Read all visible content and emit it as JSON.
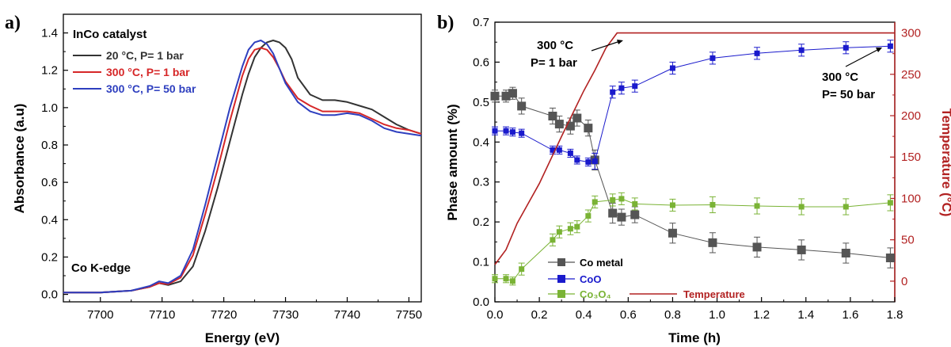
{
  "chart_data": [
    {
      "panel_label": "a)",
      "type": "line",
      "xlabel": "Energy (eV)",
      "ylabel": "Absorbance (a.u)",
      "xlim": [
        7694,
        7752
      ],
      "ylim": [
        -0.04,
        1.5
      ],
      "xticks": [
        "7700",
        "7710",
        "7720",
        "7730",
        "7740",
        "7750"
      ],
      "yticks": [
        "0.0",
        "0.2",
        "0.4",
        "0.6",
        "0.8",
        "1.0",
        "1.2",
        "1.4"
      ],
      "legend_title": "InCo catalyst",
      "annotation": "Co K-edge",
      "legend_position": "top-left",
      "series": [
        {
          "name": "20 °C, P= 1 bar",
          "color": "#333333",
          "x": [
            7694,
            7700,
            7705,
            7708,
            7709.5,
            7711,
            7713,
            7715,
            7717,
            7719,
            7721,
            7723,
            7724,
            7725,
            7726,
            7727,
            7728,
            7729,
            7730,
            7731,
            7732,
            7734,
            7736,
            7738,
            7740,
            7742,
            7744,
            7746,
            7748,
            7750,
            7752
          ],
          "y": [
            0.01,
            0.01,
            0.02,
            0.04,
            0.06,
            0.05,
            0.07,
            0.15,
            0.34,
            0.57,
            0.82,
            1.07,
            1.18,
            1.27,
            1.32,
            1.35,
            1.36,
            1.35,
            1.32,
            1.26,
            1.16,
            1.07,
            1.04,
            1.04,
            1.03,
            1.01,
            0.99,
            0.95,
            0.91,
            0.88,
            0.86
          ]
        },
        {
          "name": "300 °C, P= 1 bar",
          "color": "#d62728",
          "x": [
            7694,
            7700,
            7705,
            7708,
            7709.5,
            7711,
            7713,
            7715,
            7717,
            7719,
            7721,
            7723,
            7724,
            7725,
            7726,
            7727,
            7728,
            7729,
            7730,
            7732,
            7734,
            7736,
            7738,
            7740,
            7742,
            7744,
            7746,
            7748,
            7750,
            7752
          ],
          "y": [
            0.01,
            0.01,
            0.02,
            0.04,
            0.06,
            0.055,
            0.09,
            0.21,
            0.43,
            0.67,
            0.93,
            1.17,
            1.26,
            1.31,
            1.32,
            1.31,
            1.27,
            1.21,
            1.14,
            1.05,
            1.01,
            0.98,
            0.98,
            0.98,
            0.97,
            0.94,
            0.91,
            0.89,
            0.88,
            0.86
          ]
        },
        {
          "name": "300 °C, P= 50 bar",
          "color": "#2e3fbf",
          "x": [
            7694,
            7700,
            7705,
            7708,
            7709.5,
            7711,
            7713,
            7715,
            7717,
            7719,
            7721,
            7723,
            7724,
            7725,
            7726,
            7727,
            7728,
            7729,
            7730,
            7732,
            7734,
            7736,
            7738,
            7740,
            7742,
            7744,
            7746,
            7748,
            7750,
            7752
          ],
          "y": [
            0.01,
            0.01,
            0.02,
            0.045,
            0.07,
            0.06,
            0.1,
            0.24,
            0.48,
            0.74,
            1.0,
            1.22,
            1.31,
            1.35,
            1.36,
            1.34,
            1.29,
            1.21,
            1.13,
            1.03,
            0.98,
            0.96,
            0.96,
            0.97,
            0.96,
            0.93,
            0.89,
            0.87,
            0.86,
            0.85
          ]
        }
      ]
    },
    {
      "panel_label": "b)",
      "type": "scatter",
      "xlabel": "Time (h)",
      "ylabel": "Phase amount (%)",
      "y2label": "Temperature (°C)",
      "xlim": [
        0,
        1.8
      ],
      "ylim": [
        0,
        0.7
      ],
      "y2lim": [
        -25,
        313
      ],
      "xticks": [
        "0.0",
        "0.2",
        "0.4",
        "0.6",
        "0.8",
        "1.0",
        "1.2",
        "1.4",
        "1.6",
        "1.8"
      ],
      "yticks": [
        "0.0",
        "0.1",
        "0.2",
        "0.3",
        "0.4",
        "0.5",
        "0.6",
        "0.7"
      ],
      "y2ticks": [
        "0",
        "50",
        "100",
        "150",
        "200",
        "250",
        "300"
      ],
      "annotations": [
        {
          "line1": "300 °C",
          "line2": "P= 1 bar"
        },
        {
          "line1": "300 °C",
          "line2": "P= 50 bar"
        }
      ],
      "legend_position": "bottom-left",
      "series": [
        {
          "name": "Co metal",
          "color": "#555555",
          "axis": "left",
          "x": [
            0.0,
            0.05,
            0.08,
            0.12,
            0.26,
            0.29,
            0.34,
            0.37,
            0.42,
            0.45,
            0.53,
            0.57,
            0.63,
            0.8,
            0.98,
            1.18,
            1.38,
            1.58,
            1.78
          ],
          "y": [
            0.515,
            0.515,
            0.522,
            0.49,
            0.465,
            0.445,
            0.44,
            0.46,
            0.435,
            0.355,
            0.222,
            0.212,
            0.218,
            0.172,
            0.148,
            0.137,
            0.13,
            0.122,
            0.11
          ],
          "err": [
            0.015,
            0.015,
            0.015,
            0.02,
            0.02,
            0.02,
            0.02,
            0.02,
            0.02,
            0.025,
            0.025,
            0.02,
            0.02,
            0.025,
            0.025,
            0.025,
            0.025,
            0.025,
            0.025
          ]
        },
        {
          "name": "CoO",
          "color": "#1a1acc",
          "axis": "left",
          "x": [
            0.0,
            0.05,
            0.08,
            0.12,
            0.26,
            0.29,
            0.34,
            0.37,
            0.42,
            0.45,
            0.53,
            0.57,
            0.63,
            0.8,
            0.98,
            1.18,
            1.38,
            1.58,
            1.78
          ],
          "y": [
            0.428,
            0.428,
            0.425,
            0.422,
            0.38,
            0.38,
            0.372,
            0.355,
            0.35,
            0.352,
            0.525,
            0.535,
            0.54,
            0.585,
            0.61,
            0.622,
            0.63,
            0.636,
            0.64
          ],
          "err": [
            0.01,
            0.01,
            0.01,
            0.01,
            0.01,
            0.01,
            0.01,
            0.01,
            0.01,
            0.02,
            0.015,
            0.015,
            0.015,
            0.015,
            0.015,
            0.015,
            0.015,
            0.015,
            0.015
          ]
        },
        {
          "name": "Co₃O₄",
          "color": "#7ab335",
          "axis": "left",
          "x": [
            0.0,
            0.05,
            0.08,
            0.12,
            0.26,
            0.29,
            0.34,
            0.37,
            0.42,
            0.45,
            0.53,
            0.57,
            0.63,
            0.8,
            0.98,
            1.18,
            1.38,
            1.58,
            1.78
          ],
          "y": [
            0.058,
            0.058,
            0.052,
            0.082,
            0.155,
            0.175,
            0.183,
            0.188,
            0.215,
            0.25,
            0.255,
            0.258,
            0.245,
            0.242,
            0.243,
            0.24,
            0.238,
            0.238,
            0.248
          ],
          "err": [
            0.01,
            0.01,
            0.01,
            0.015,
            0.015,
            0.015,
            0.015,
            0.015,
            0.015,
            0.015,
            0.015,
            0.015,
            0.015,
            0.015,
            0.02,
            0.02,
            0.02,
            0.02,
            0.02
          ]
        },
        {
          "name": "Temperature",
          "color": "#b22222",
          "axis": "right",
          "type": "line",
          "x": [
            0,
            0.05,
            0.1,
            0.2,
            0.3,
            0.4,
            0.45,
            0.5,
            0.55,
            0.57,
            1.8
          ],
          "y": [
            20,
            38,
            70,
            118,
            175,
            230,
            255,
            282,
            300,
            300,
            300
          ]
        }
      ]
    }
  ]
}
